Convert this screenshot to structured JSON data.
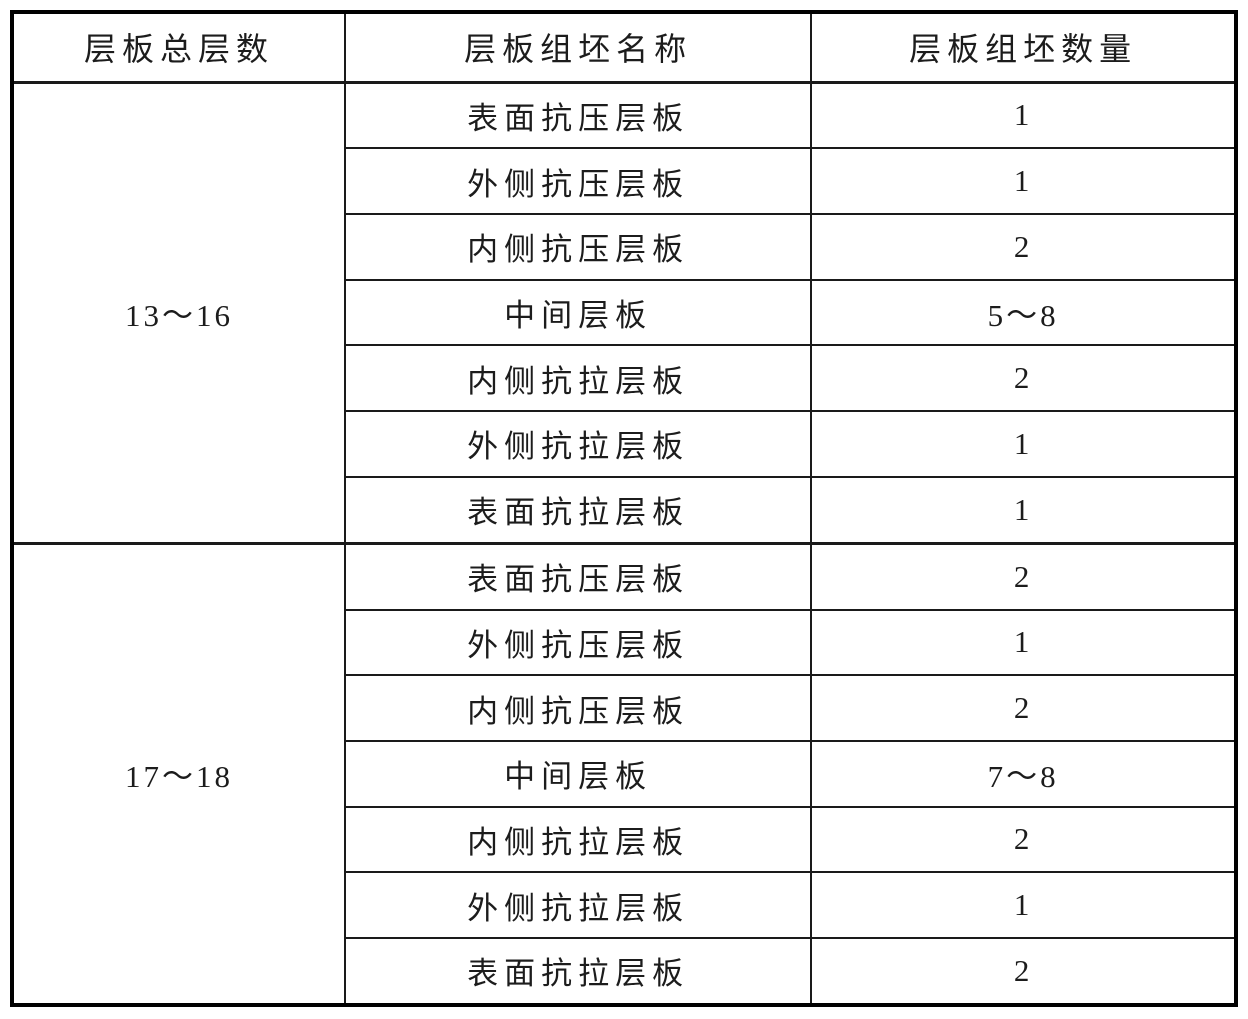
{
  "table": {
    "columns": [
      "层板总层数",
      "层板组坯名称",
      "层板组坯数量"
    ],
    "groups": [
      {
        "total_layers": "13～16",
        "rows": [
          {
            "name": "表面抗压层板",
            "qty": "1"
          },
          {
            "name": "外侧抗压层板",
            "qty": "1"
          },
          {
            "name": "内侧抗压层板",
            "qty": "2"
          },
          {
            "name": "中间层板",
            "qty": "5～8"
          },
          {
            "name": "内侧抗拉层板",
            "qty": "2"
          },
          {
            "name": "外侧抗拉层板",
            "qty": "1"
          },
          {
            "name": "表面抗拉层板",
            "qty": "1"
          }
        ]
      },
      {
        "total_layers": "17～18",
        "rows": [
          {
            "name": "表面抗压层板",
            "qty": "2"
          },
          {
            "name": "外侧抗压层板",
            "qty": "1"
          },
          {
            "name": "内侧抗压层板",
            "qty": "2"
          },
          {
            "name": "中间层板",
            "qty": "7～8"
          },
          {
            "name": "内侧抗拉层板",
            "qty": "2"
          },
          {
            "name": "外侧抗拉层板",
            "qty": "1"
          },
          {
            "name": "表面抗拉层板",
            "qty": "2"
          }
        ]
      }
    ],
    "colors": {
      "background": "#ffffff",
      "outer_border": "#000000",
      "inner_border": "#1a1a1a",
      "text": "#1c1c1c"
    }
  }
}
